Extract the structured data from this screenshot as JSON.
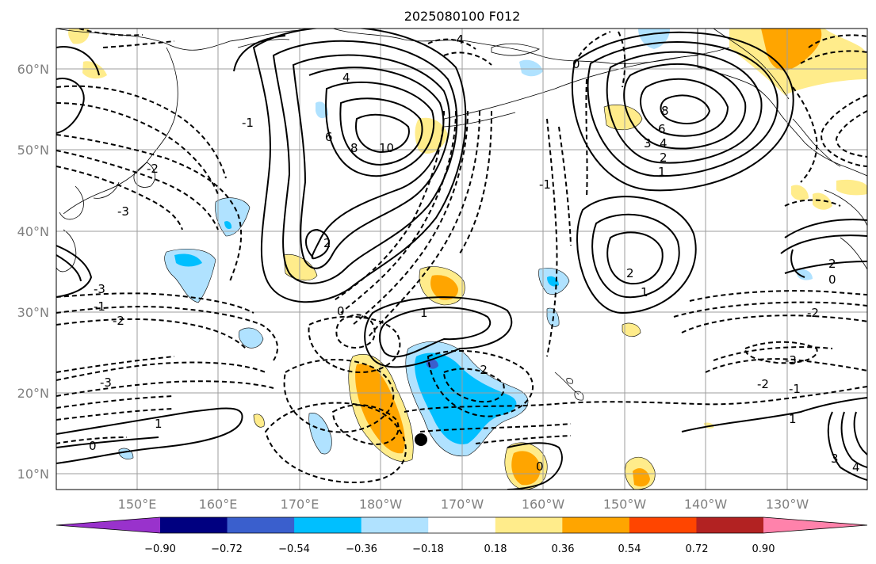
{
  "title": "2025080100 F012",
  "lon_labels": [
    "150°E",
    "160°E",
    "170°E",
    "180°W",
    "170°W",
    "160°W",
    "150°W",
    "140°W",
    "130°W"
  ],
  "lat_labels": [
    "60°N",
    "50°N",
    "40°N",
    "30°N",
    "20°N",
    "10°N"
  ],
  "colorbar": {
    "tick_labels": [
      "−0.90",
      "−0.72",
      "−0.54",
      "−0.36",
      "−0.18",
      "0.18",
      "0.36",
      "0.54",
      "0.72",
      "0.90"
    ],
    "colors": [
      "#9932cc",
      "#000080",
      "#3a5fcd",
      "#00bfff",
      "#b0e2ff",
      "#ffffff",
      "#ffec8b",
      "#ffa500",
      "#ff4500",
      "#b22222",
      "#ff82ab"
    ]
  },
  "fill_colors": {
    "neg_light": "#b0e2ff",
    "neg_mid": "#00bfff",
    "neg_strong": "#3a5fcd",
    "pos_light": "#ffec8b",
    "pos_mid": "#ffa500"
  },
  "marker": {
    "name": "black-dot",
    "color": "#000000"
  },
  "contour_labels": [
    "4",
    "6",
    "8",
    "10",
    "2",
    "1",
    "0",
    "-1",
    "-2",
    "-3",
    "-4",
    "8",
    "6",
    "4",
    "3",
    "2",
    "1",
    "0",
    "1",
    "-1",
    "-2",
    "-3",
    "2",
    "0",
    "3",
    "4",
    "1",
    "2",
    "0",
    "-2",
    "-1",
    "-2",
    "-3",
    "1",
    "0",
    "-1",
    "-2",
    "-3"
  ]
}
